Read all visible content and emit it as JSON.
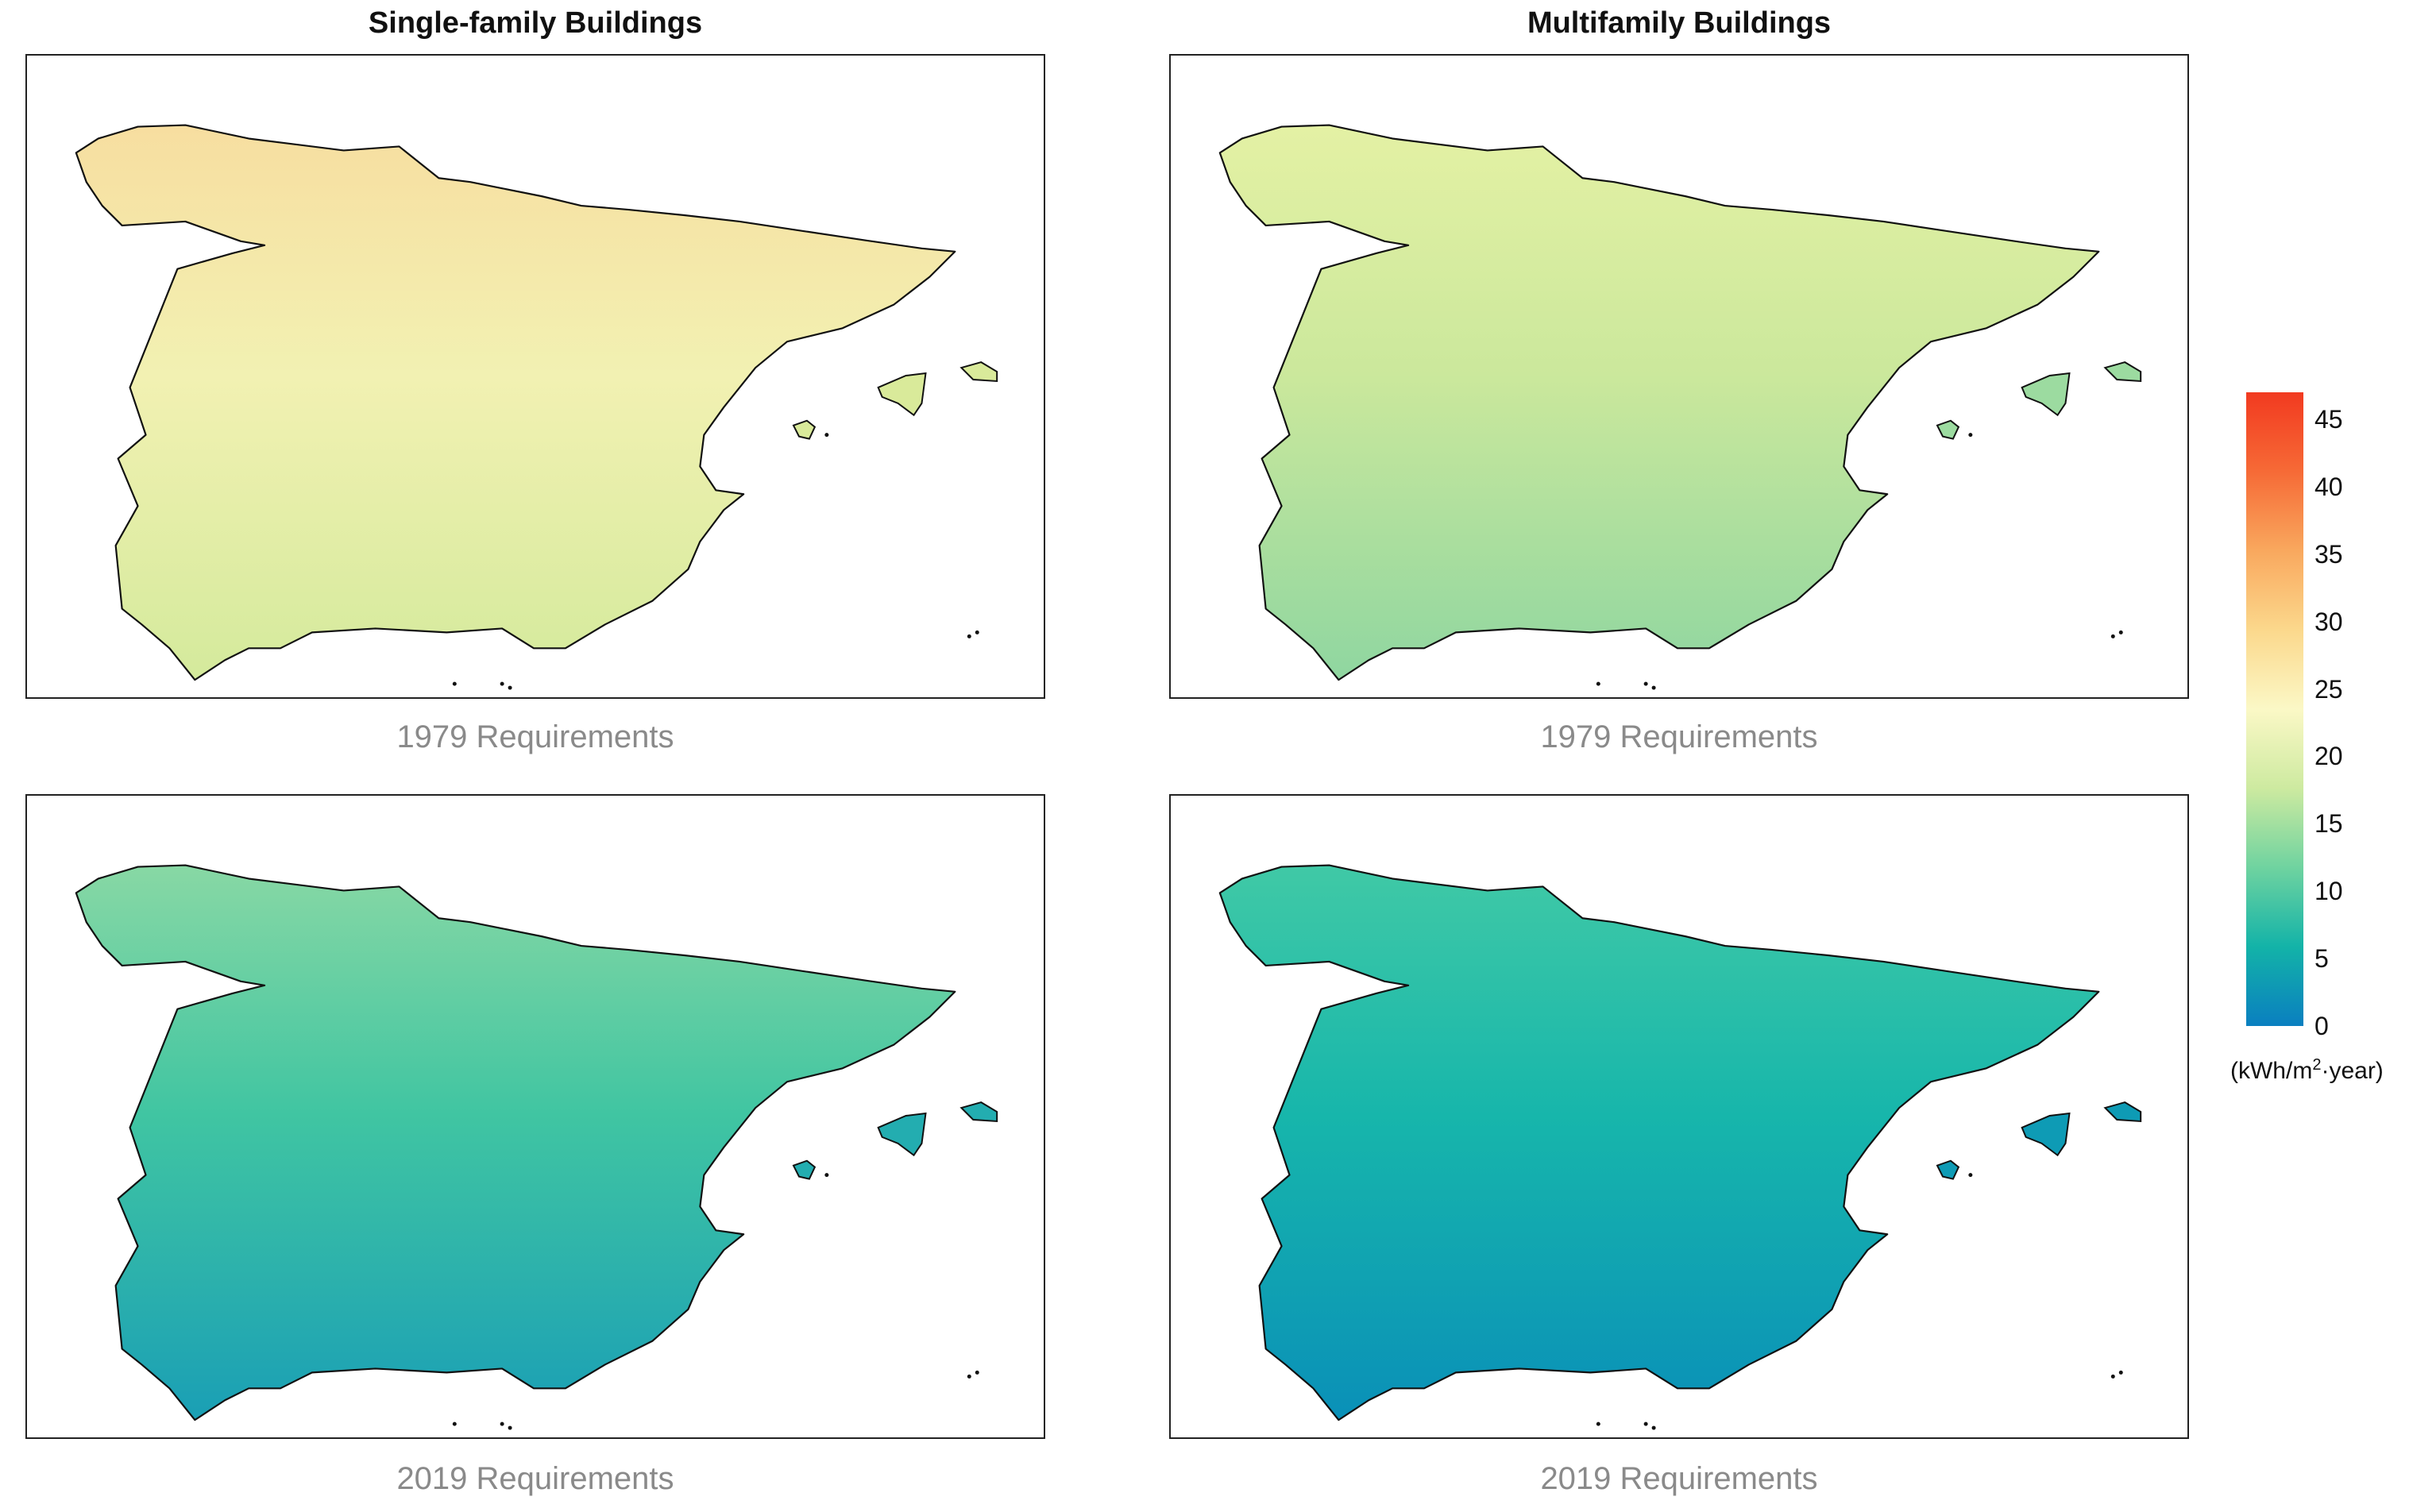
{
  "columns": [
    {
      "title": "Single-family Buildings"
    },
    {
      "title": "Multifamily Buildings"
    }
  ],
  "panels": [
    {
      "caption": "1979 Requirements",
      "building": "Single-family Buildings",
      "colors": {
        "north": "#f7dea0",
        "mid": "#f2f1b2",
        "south": "#d4ea9c",
        "islands": "#d9ea9a"
      }
    },
    {
      "caption": "1979 Requirements",
      "building": "Multifamily Buildings",
      "colors": {
        "north": "#e4f1a4",
        "mid": "#cbe89c",
        "south": "#8fd6a0",
        "islands": "#9cdba0"
      }
    },
    {
      "caption": "2019 Requirements",
      "building": "Single-family Buildings",
      "colors": {
        "north": "#88d8a4",
        "mid": "#40c5a2",
        "south": "#1a9fb5",
        "islands": "#23adb0"
      }
    },
    {
      "caption": "2019 Requirements",
      "building": "Multifamily Buildings",
      "colors": {
        "north": "#40c9a6",
        "mid": "#17b6ab",
        "south": "#0a90b8",
        "islands": "#0e9bb5"
      }
    }
  ],
  "legend": {
    "min": 0,
    "max": 47,
    "ticks": [
      "45",
      "40",
      "35",
      "30",
      "25",
      "20",
      "15",
      "10",
      "5",
      "0"
    ],
    "tick_values": [
      45,
      40,
      35,
      30,
      25,
      20,
      15,
      10,
      5,
      0
    ],
    "unit_prefix": "(kWh/m",
    "unit_sup": "2",
    "unit_suffix": "·year)",
    "colors": [
      "#0a7fc0",
      "#13b3a8",
      "#6fd3a0",
      "#cdeaa0",
      "#fbf8c6",
      "#fbd88c",
      "#f9a85e",
      "#f66a36",
      "#f23a20"
    ]
  }
}
